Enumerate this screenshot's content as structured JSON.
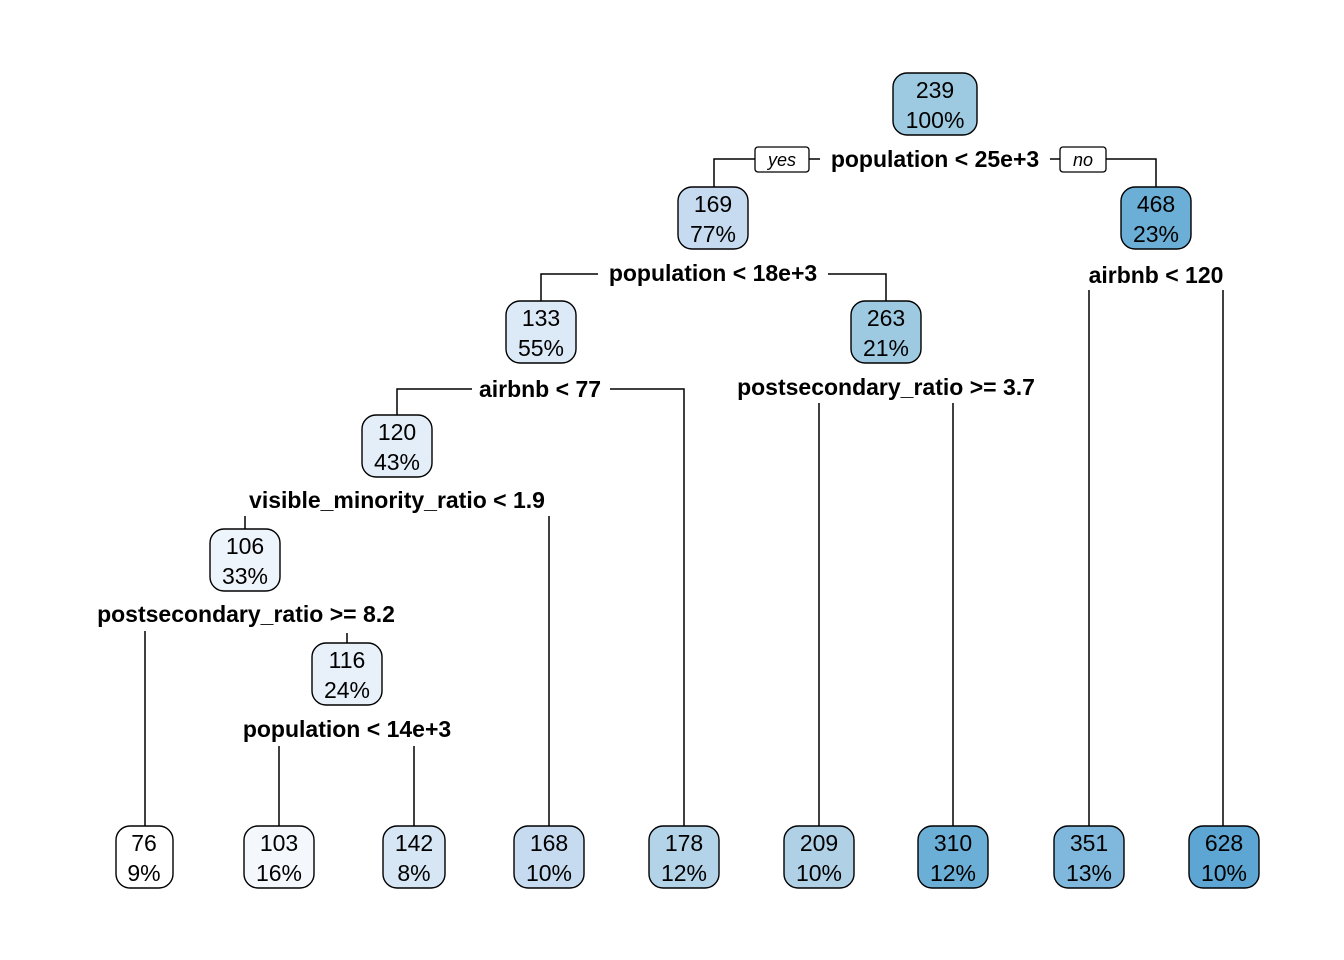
{
  "branch_labels": {
    "yes": "yes",
    "no": "no"
  },
  "nodes": [
    {
      "id": "n1",
      "value": "239",
      "percent": "100%",
      "color": "#9ecae1"
    },
    {
      "id": "n2",
      "value": "169",
      "percent": "77%",
      "color": "#c6dbef"
    },
    {
      "id": "n3",
      "value": "468",
      "percent": "23%",
      "color": "#6baed6"
    },
    {
      "id": "n4",
      "value": "133",
      "percent": "55%",
      "color": "#dce9f6"
    },
    {
      "id": "n5",
      "value": "263",
      "percent": "21%",
      "color": "#9ecae1"
    },
    {
      "id": "n8",
      "value": "120",
      "percent": "43%",
      "color": "#e3eef9"
    },
    {
      "id": "n16",
      "value": "106",
      "percent": "33%",
      "color": "#edf4fb"
    },
    {
      "id": "n33",
      "value": "116",
      "percent": "24%",
      "color": "#e8f1fa"
    },
    {
      "id": "l32",
      "value": "76",
      "percent": "9%",
      "color": "#ffffff"
    },
    {
      "id": "l66",
      "value": "103",
      "percent": "16%",
      "color": "#f4f8fd"
    },
    {
      "id": "l67",
      "value": "142",
      "percent": "8%",
      "color": "#d6e6f4"
    },
    {
      "id": "l17",
      "value": "168",
      "percent": "10%",
      "color": "#c6dbef"
    },
    {
      "id": "l9",
      "value": "178",
      "percent": "12%",
      "color": "#b3d3e8"
    },
    {
      "id": "l10",
      "value": "209",
      "percent": "10%",
      "color": "#b0d0e6"
    },
    {
      "id": "l11",
      "value": "310",
      "percent": "12%",
      "color": "#6baed6"
    },
    {
      "id": "l6",
      "value": "351",
      "percent": "13%",
      "color": "#7fb8dc"
    },
    {
      "id": "l7",
      "value": "628",
      "percent": "10%",
      "color": "#5da5d2"
    }
  ],
  "splits": [
    {
      "id": "s1",
      "label": "population < 25e+3"
    },
    {
      "id": "s2",
      "label": "population < 18e+3"
    },
    {
      "id": "s3",
      "label": "airbnb < 120"
    },
    {
      "id": "s4",
      "label": "airbnb < 77"
    },
    {
      "id": "s5",
      "label": "postsecondary_ratio >= 3.7"
    },
    {
      "id": "s8",
      "label": "visible_minority_ratio < 1.9"
    },
    {
      "id": "s16",
      "label": "postsecondary_ratio >= 8.2"
    },
    {
      "id": "s33",
      "label": "population < 14e+3"
    }
  ]
}
